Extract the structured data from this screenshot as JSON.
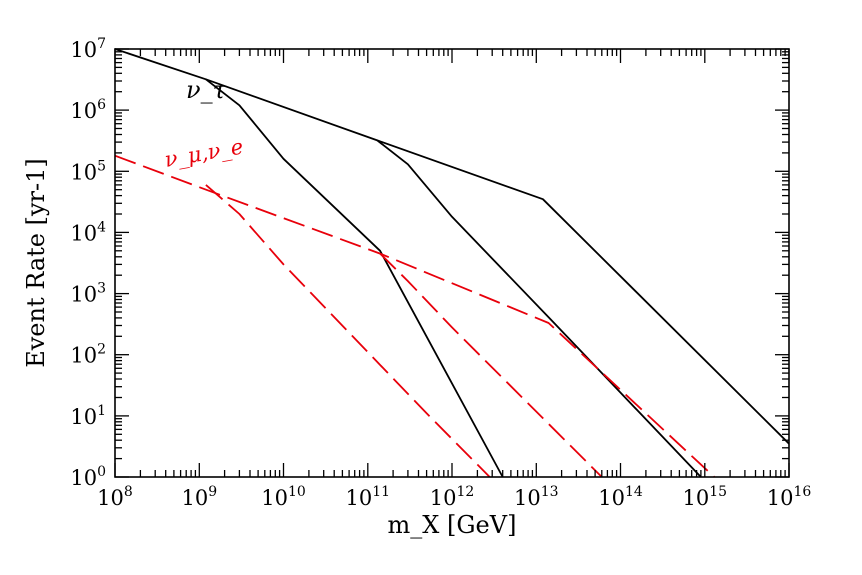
{
  "chart_data": {
    "type": "line",
    "title": "",
    "xlabel": "m_X [GeV]",
    "ylabel": "Event Rate [yr-1]",
    "x_scale": "log",
    "y_scale": "log",
    "xlim": [
      100000000.0,
      1e+16
    ],
    "ylim": [
      1,
      10000000.0
    ],
    "grid": false,
    "x_ticks": [
      {
        "base": "10",
        "exp": "8"
      },
      {
        "base": "10",
        "exp": "9"
      },
      {
        "base": "10",
        "exp": "10"
      },
      {
        "base": "10",
        "exp": "11"
      },
      {
        "base": "10",
        "exp": "12"
      },
      {
        "base": "10",
        "exp": "13"
      },
      {
        "base": "10",
        "exp": "14"
      },
      {
        "base": "10",
        "exp": "15"
      },
      {
        "base": "10",
        "exp": "16"
      }
    ],
    "y_ticks": [
      {
        "base": "10",
        "exp": "0"
      },
      {
        "base": "10",
        "exp": "1"
      },
      {
        "base": "10",
        "exp": "2"
      },
      {
        "base": "10",
        "exp": "3"
      },
      {
        "base": "10",
        "exp": "4"
      },
      {
        "base": "10",
        "exp": "5"
      },
      {
        "base": "10",
        "exp": "6"
      },
      {
        "base": "10",
        "exp": "7"
      }
    ],
    "annotations": [
      {
        "text": "ν_τ",
        "color": "#000000"
      },
      {
        "text": "ν_μ,ν_e",
        "color": "#e8000b"
      }
    ],
    "series": [
      {
        "group": "tau",
        "color": "#000000",
        "dash": "solid",
        "x": [
          100000000.0,
          1200000000.0,
          130000000000.0,
          12000000000000.0,
          1e+16
        ],
        "y": [
          10000000.0,
          3200000.0,
          320000.0,
          35000.0,
          3.5
        ]
      },
      {
        "group": "tau",
        "color": "#000000",
        "dash": "solid",
        "x": [
          1200000000.0,
          3000000000.0,
          10000000000.0,
          140000000000.0,
          4000000000000.0
        ],
        "y": [
          3200000.0,
          1200000.0,
          160000.0,
          5000.0,
          1
        ]
      },
      {
        "group": "tau",
        "color": "#000000",
        "dash": "solid",
        "x": [
          130000000000.0,
          300000000000.0,
          1000000000000.0,
          16000000000000.0,
          900000000000000.0
        ],
        "y": [
          320000.0,
          130000.0,
          18000.0,
          340,
          1
        ]
      },
      {
        "group": "mu-e",
        "color": "#e8000b",
        "dash": "dashed",
        "x": [
          100000000.0,
          1000000000.0,
          140000000000.0,
          14000000000000.0,
          1300000000000000.0
        ],
        "y": [
          180000.0,
          55000.0,
          4500.0,
          330,
          1
        ]
      },
      {
        "group": "mu-e",
        "color": "#e8000b",
        "dash": "dashed",
        "x": [
          1200000000.0,
          3000000000.0,
          10000000000.0,
          500000000000.0,
          2800000000000.0
        ],
        "y": [
          60000.0,
          20000.0,
          3000.0,
          11,
          1
        ]
      },
      {
        "group": "mu-e",
        "color": "#e8000b",
        "dash": "dashed",
        "x": [
          140000000000.0,
          300000000000.0,
          1000000000000.0,
          60000000000000.0
        ],
        "y": [
          4500.0,
          1600.0,
          280,
          1
        ]
      }
    ]
  }
}
